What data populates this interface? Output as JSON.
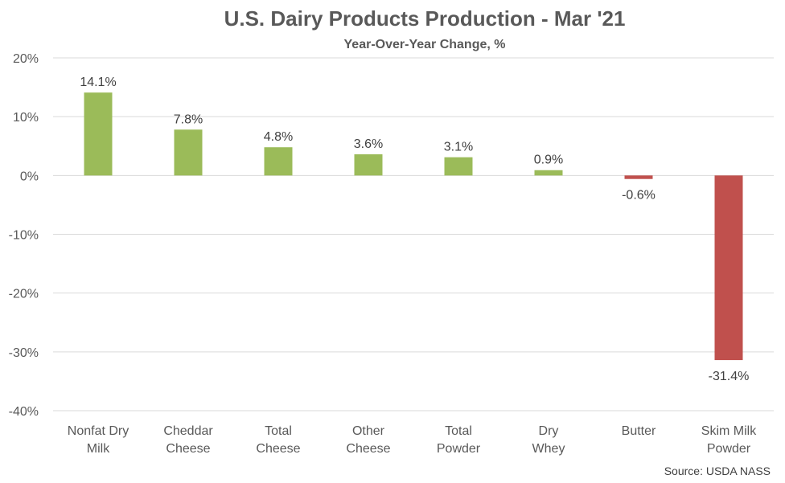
{
  "chart_data": {
    "type": "bar",
    "title": "U.S. Dairy Products Production - Mar '21",
    "subtitle": "Year-Over-Year Change, %",
    "categories": [
      [
        "Nonfat Dry",
        "Milk"
      ],
      [
        "Cheddar",
        "Cheese"
      ],
      [
        "Total",
        "Cheese"
      ],
      [
        "Other",
        "Cheese"
      ],
      [
        "Total",
        "Powder"
      ],
      [
        "Dry",
        "Whey"
      ],
      [
        "Butter"
      ],
      [
        "Skim Milk",
        "Powder"
      ]
    ],
    "values": [
      14.1,
      7.8,
      4.8,
      3.6,
      3.1,
      0.9,
      -0.6,
      -31.4
    ],
    "data_labels": [
      "14.1%",
      "7.8%",
      "4.8%",
      "3.6%",
      "3.1%",
      "0.9%",
      "-0.6%",
      "-31.4%"
    ],
    "ylim": [
      -40,
      20
    ],
    "yticks": [
      20,
      10,
      0,
      -10,
      -20,
      -30,
      -40
    ],
    "ytick_labels": [
      "20%",
      "10%",
      "0%",
      "-10%",
      "-20%",
      "-30%",
      "-40%"
    ],
    "grid": true,
    "positive_color": "#9bbb59",
    "negative_color": "#c0504d",
    "source": "Source: USDA NASS"
  }
}
